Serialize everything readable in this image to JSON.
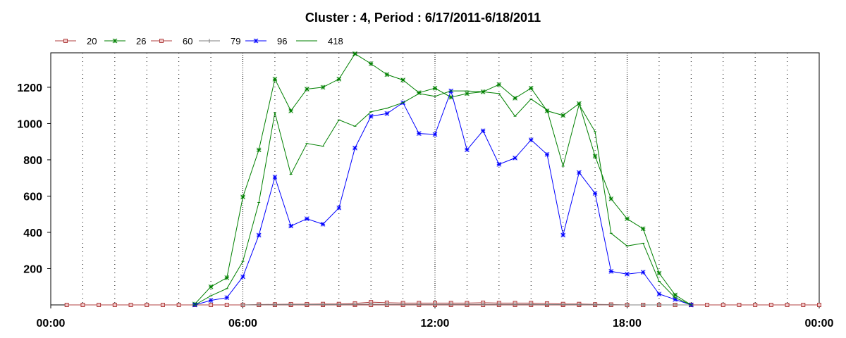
{
  "chart_data": {
    "type": "line",
    "title": "Cluster : 4, Period : 6/17/2011-6/18/2011",
    "xlabel": "",
    "ylabel": "",
    "x_ticks": [
      "00:00",
      "06:00",
      "12:00",
      "18:00",
      "00:00"
    ],
    "y_ticks": [
      "200",
      "400",
      "600",
      "800",
      "1000",
      "1200"
    ],
    "xlim_hours": [
      0,
      24
    ],
    "ylim": [
      0,
      1390
    ],
    "legend_position": "top-left",
    "grid": "vertical-dotted",
    "series": [
      {
        "name": "20",
        "color": "#b04040",
        "marker": "square",
        "x": [
          0.5,
          1,
          1.5,
          2,
          2.5,
          3,
          3.5,
          4,
          4.5,
          5,
          5.5,
          6,
          6.5,
          7,
          7.5,
          8,
          8.5,
          9,
          9.5,
          10,
          10.5,
          11,
          11.5,
          12,
          12.5,
          13,
          13.5,
          14,
          14.5,
          15,
          15.5,
          16,
          16.5,
          17,
          17.5,
          18,
          18.5,
          19,
          19.5,
          20,
          20.5,
          21,
          21.5,
          22,
          22.5,
          23,
          23.5,
          24
        ],
        "values": [
          0,
          0,
          0,
          0,
          0,
          0,
          0,
          0,
          0,
          0,
          0,
          0,
          0,
          0,
          0,
          0,
          0,
          0,
          0,
          0,
          0,
          0,
          0,
          0,
          0,
          0,
          0,
          0,
          0,
          0,
          0,
          0,
          0,
          0,
          0,
          0,
          0,
          0,
          0,
          0,
          0,
          0,
          0,
          0,
          0,
          0,
          0,
          0
        ]
      },
      {
        "name": "26",
        "color": "#008000",
        "marker": "star",
        "x": [
          4.5,
          5,
          5.5,
          6,
          6.5,
          7,
          7.5,
          8,
          8.5,
          9,
          9.5,
          10,
          10.5,
          11,
          11.5,
          12,
          12.5,
          13,
          13.5,
          14,
          14.5,
          15,
          15.5,
          16,
          16.5,
          17,
          17.5,
          18,
          18.5,
          19,
          19.5,
          20
        ],
        "values": [
          5,
          100,
          150,
          595,
          855,
          1245,
          1070,
          1190,
          1200,
          1245,
          1385,
          1330,
          1270,
          1240,
          1170,
          1195,
          1145,
          1165,
          1175,
          1215,
          1140,
          1195,
          1070,
          1045,
          1110,
          820,
          585,
          475,
          420,
          175,
          55,
          0
        ]
      },
      {
        "name": "60",
        "color": "#b04040",
        "marker": "square",
        "x": [
          6,
          6.5,
          7,
          7.5,
          8,
          8.5,
          9,
          9.5,
          10,
          10.5,
          11,
          11.5,
          12,
          12.5,
          13,
          13.5,
          14,
          14.5,
          15,
          15.5,
          16,
          16.5,
          17,
          17.5,
          18,
          18.5,
          19,
          19.5,
          20
        ],
        "values": [
          0,
          2,
          3,
          4,
          4,
          5,
          5,
          8,
          15,
          12,
          10,
          10,
          10,
          10,
          10,
          12,
          10,
          10,
          10,
          8,
          5,
          5,
          3,
          2,
          0,
          0,
          0,
          0,
          0
        ]
      },
      {
        "name": "79",
        "color": "#808080",
        "marker": "plus",
        "x": [
          6,
          6.5,
          7,
          7.5,
          8,
          8.5,
          9,
          9.5,
          10,
          10.5,
          11,
          11.5,
          12,
          12.5,
          13,
          13.5,
          14,
          14.5,
          15,
          15.5,
          16,
          16.5,
          17,
          17.5,
          18,
          18.5,
          19,
          19.5,
          20
        ],
        "values": [
          0,
          1,
          1,
          2,
          2,
          2,
          2,
          3,
          4,
          3,
          3,
          3,
          3,
          3,
          3,
          3,
          3,
          3,
          3,
          2,
          2,
          2,
          1,
          1,
          0,
          0,
          0,
          0,
          0
        ]
      },
      {
        "name": "96",
        "color": "#0000ff",
        "marker": "asterisk",
        "x": [
          4.5,
          5,
          5.5,
          6,
          6.5,
          7,
          7.5,
          8,
          8.5,
          9,
          9.5,
          10,
          10.5,
          11,
          11.5,
          12,
          12.5,
          13,
          13.5,
          14,
          14.5,
          15,
          15.5,
          16,
          16.5,
          17,
          17.5,
          18,
          18.5,
          19,
          19.5,
          20
        ],
        "values": [
          0,
          25,
          40,
          155,
          385,
          705,
          435,
          475,
          445,
          535,
          865,
          1040,
          1055,
          1115,
          945,
          940,
          1180,
          855,
          960,
          775,
          810,
          910,
          830,
          385,
          730,
          615,
          185,
          170,
          180,
          60,
          30,
          0
        ]
      },
      {
        "name": "418",
        "color": "#008000",
        "marker": "dash",
        "x": [
          4.5,
          5,
          5.5,
          6,
          6.5,
          7,
          7.5,
          8,
          8.5,
          9,
          9.5,
          10,
          10.5,
          11,
          11.5,
          12,
          12.5,
          13,
          13.5,
          14,
          14.5,
          15,
          15.5,
          16,
          16.5,
          17,
          17.5,
          18,
          18.5,
          19,
          19.5,
          20
        ],
        "values": [
          0,
          50,
          90,
          240,
          565,
          1060,
          720,
          890,
          875,
          1020,
          985,
          1065,
          1085,
          1115,
          1165,
          1150,
          1180,
          1180,
          1175,
          1165,
          1040,
          1135,
          1075,
          765,
          1105,
          955,
          395,
          325,
          340,
          130,
          40,
          0
        ]
      }
    ]
  }
}
